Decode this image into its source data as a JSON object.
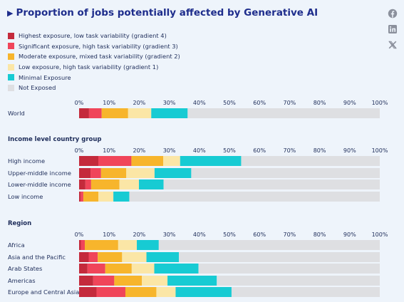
{
  "header": {
    "title": "Proportion of jobs potentially affected by Generative AI"
  },
  "share_icons": [
    "facebook-icon",
    "linkedin-icon",
    "x-icon"
  ],
  "chart_data": {
    "type": "bar",
    "orientation": "horizontal",
    "stacked": true,
    "title": "Proportion of jobs potentially affected by Generative AI",
    "xlim": [
      0,
      100
    ],
    "xticks": [
      "0%",
      "10%",
      "20%",
      "30%",
      "40%",
      "50%",
      "60%",
      "70%",
      "80%",
      "90%",
      "100%"
    ],
    "grid": false,
    "legend_position": "top-left",
    "series": [
      {
        "name": "Highest exposure, low task variability (gradient 4)",
        "color": "#c42a3c"
      },
      {
        "name": "Significant exposure, high task variability (gradient 3)",
        "color": "#f0455a"
      },
      {
        "name": "Moderate exposure, mixed task variability (gradient 2)",
        "color": "#f7b52c"
      },
      {
        "name": "Low exposure, high task variability (gradient 1)",
        "color": "#fbe6a6"
      },
      {
        "name": "Minimal Exposure",
        "color": "#17cbd3"
      },
      {
        "name": "Not Exposed",
        "color": "#dedfe2"
      }
    ],
    "groups": [
      {
        "label": "",
        "categories": [
          {
            "name": "World",
            "values": [
              3.3,
              4.2,
              8.8,
              7.7,
              12.1,
              63.9
            ]
          }
        ]
      },
      {
        "label": "Income level country group",
        "categories": [
          {
            "name": "High income",
            "values": [
              6.4,
              11.0,
              10.6,
              5.6,
              20.3,
              46.1
            ]
          },
          {
            "name": "Upper-middle income",
            "values": [
              3.8,
              3.5,
              8.4,
              9.4,
              12.2,
              62.7
            ]
          },
          {
            "name": "Lower-middle income",
            "values": [
              2.1,
              1.9,
              9.4,
              6.5,
              8.2,
              71.9
            ]
          },
          {
            "name": "Low income",
            "values": [
              0.5,
              0.9,
              5.0,
              5.0,
              5.3,
              83.3
            ]
          }
        ]
      },
      {
        "label": "Region",
        "categories": [
          {
            "name": "Africa",
            "values": [
              0.6,
              1.3,
              11.1,
              6.2,
              7.3,
              73.5
            ]
          },
          {
            "name": "Asia and the Pacific",
            "values": [
              3.2,
              3.0,
              8.1,
              8.1,
              10.8,
              66.8
            ]
          },
          {
            "name": "Arab States",
            "values": [
              2.8,
              5.9,
              8.8,
              7.5,
              14.7,
              60.3
            ]
          },
          {
            "name": "Americas",
            "values": [
              4.7,
              7.0,
              9.2,
              8.5,
              16.4,
              54.2
            ]
          },
          {
            "name": "Europe and Central Asia",
            "values": [
              5.8,
              9.6,
              10.3,
              6.4,
              18.6,
              49.3
            ]
          }
        ]
      }
    ]
  }
}
